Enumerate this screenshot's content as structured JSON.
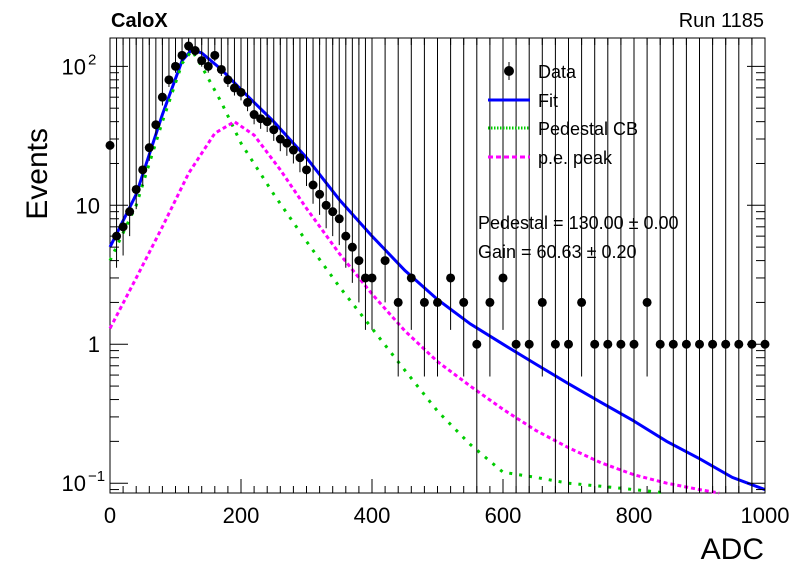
{
  "header": {
    "experiment": "CaloX",
    "run": "Run 1185"
  },
  "stats": {
    "pedestal": "Pedestal = 130.00 ± 0.00",
    "gain": "Gain = 60.63 ± 0.20"
  },
  "chart_data": {
    "type": "scatter",
    "title": "",
    "xlabel": "ADC",
    "ylabel": "Events",
    "xlim": [
      0,
      1000
    ],
    "ylim": [
      0.085,
      160
    ],
    "yscale": "log",
    "grid": false,
    "legend_position": "top-right",
    "x_ticks": [
      "0",
      "200",
      "400",
      "600",
      "800",
      "1000"
    ],
    "y_ticks": [
      {
        "value": 100,
        "base": "10",
        "exp": "2"
      },
      {
        "value": 10,
        "base": "10",
        "exp": ""
      },
      {
        "value": 1,
        "base": "1",
        "exp": ""
      },
      {
        "value": 0.1,
        "base": "10",
        "exp": "−1"
      }
    ],
    "series": [
      {
        "name": "Data",
        "kind": "points",
        "color": "#000000",
        "x": [
          0,
          10,
          20,
          30,
          40,
          50,
          60,
          70,
          80,
          90,
          100,
          110,
          120,
          130,
          140,
          150,
          160,
          170,
          180,
          190,
          200,
          210,
          220,
          230,
          240,
          250,
          260,
          270,
          280,
          290,
          300,
          310,
          320,
          330,
          340,
          350,
          360,
          370,
          380,
          390,
          400,
          420,
          440,
          460,
          480,
          500,
          520,
          540,
          560,
          580,
          600,
          620,
          640,
          660,
          680,
          700,
          720,
          740,
          760,
          780,
          800,
          820,
          840,
          860,
          880,
          900,
          920,
          940,
          960,
          980,
          1000
        ],
        "y": [
          27,
          6,
          7,
          9,
          13,
          18,
          26,
          38,
          60,
          80,
          100,
          120,
          140,
          130,
          110,
          100,
          120,
          95,
          80,
          70,
          65,
          55,
          45,
          42,
          40,
          35,
          30,
          28,
          25,
          22,
          18,
          14,
          12,
          10,
          9,
          8,
          6,
          5,
          4,
          3,
          3,
          4,
          2,
          3,
          2,
          2,
          3,
          2,
          1,
          2,
          3,
          1,
          1,
          2,
          1,
          1,
          2,
          1,
          1,
          1,
          1,
          2,
          1,
          1,
          1,
          1,
          1,
          1,
          1,
          1,
          1
        ]
      },
      {
        "name": "Fit",
        "kind": "line",
        "color": "#0000ff",
        "x": [
          0,
          40,
          80,
          110,
          125,
          140,
          170,
          200,
          250,
          300,
          350,
          400,
          450,
          500,
          550,
          600,
          650,
          700,
          750,
          800,
          850,
          900,
          950,
          1000
        ],
        "y": [
          5,
          12,
          45,
          110,
          132,
          125,
          95,
          68,
          40,
          22,
          11,
          6,
          3.4,
          2.1,
          1.4,
          1.0,
          0.72,
          0.52,
          0.38,
          0.28,
          0.2,
          0.15,
          0.11,
          0.09
        ]
      },
      {
        "name": "Pedestal CB",
        "kind": "dotted",
        "color": "#00cc00",
        "x": [
          0,
          40,
          80,
          110,
          125,
          140,
          170,
          200,
          250,
          300,
          350,
          400,
          450,
          500,
          550,
          600,
          650,
          700,
          750,
          800,
          850
        ],
        "y": [
          4,
          10,
          40,
          105,
          130,
          100,
          55,
          28,
          12,
          5.5,
          2.6,
          1.3,
          0.65,
          0.33,
          0.19,
          0.12,
          0.11,
          0.1,
          0.095,
          0.09,
          0.085
        ]
      },
      {
        "name": "p.e. peak",
        "kind": "dashed",
        "color": "#ff00ff",
        "x": [
          0,
          40,
          80,
          120,
          160,
          190,
          220,
          260,
          300,
          350,
          400,
          450,
          500,
          550,
          600,
          650,
          700,
          750,
          800,
          850,
          900,
          930
        ],
        "y": [
          1.3,
          3,
          7,
          17,
          33,
          40,
          32,
          18,
          9.5,
          4.5,
          2.3,
          1.25,
          0.75,
          0.5,
          0.34,
          0.24,
          0.18,
          0.14,
          0.115,
          0.1,
          0.09,
          0.085
        ]
      }
    ]
  }
}
